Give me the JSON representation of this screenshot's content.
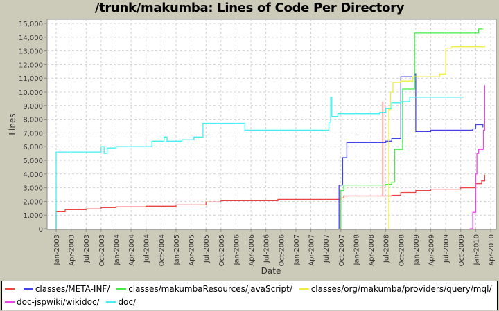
{
  "title": "/trunk/makumba: Lines of Code Per Directory",
  "chart_data": {
    "type": "line",
    "title": "/trunk/makumba: Lines of Code Per Directory",
    "xlabel": "Date",
    "ylabel": "Lines",
    "ylim": [
      0,
      15500
    ],
    "yticks": [
      "0",
      "1,000",
      "2,000",
      "3,000",
      "4,000",
      "5,000",
      "6,000",
      "7,000",
      "8,000",
      "9,000",
      "10,000",
      "11,000",
      "12,000",
      "13,000",
      "14,000",
      "15,000"
    ],
    "xticks": [
      "Jan-2003",
      "Apr-2003",
      "Jul-2003",
      "Oct-2003",
      "Jan-2004",
      "Apr-2004",
      "Jul-2004",
      "Oct-2004",
      "Jan-2005",
      "Apr-2005",
      "Jul-2005",
      "Oct-2005",
      "Jan-2006",
      "Apr-2006",
      "Jul-2006",
      "Oct-2006",
      "Jan-2007",
      "Apr-2007",
      "Jul-2007",
      "Oct-2007",
      "Jan-2008",
      "Apr-2008",
      "Jul-2008",
      "Oct-2008",
      "Jan-2009",
      "Apr-2009",
      "Jul-2009",
      "Oct-2009",
      "Jan-2010",
      "Apr-2010"
    ],
    "grid": true,
    "legend_position": "bottom",
    "series": [
      {
        "name": "",
        "color": "#ee4444",
        "points": [
          [
            2003.0,
            0
          ],
          [
            2003.0,
            1250
          ],
          [
            2003.1,
            1250
          ],
          [
            2003.15,
            1400
          ],
          [
            2003.5,
            1450
          ],
          [
            2003.75,
            1550
          ],
          [
            2004.0,
            1600
          ],
          [
            2004.5,
            1650
          ],
          [
            2005.0,
            1750
          ],
          [
            2005.5,
            1950
          ],
          [
            2005.75,
            2050
          ],
          [
            2006.5,
            2050
          ],
          [
            2006.7,
            2150
          ],
          [
            2007.5,
            2150
          ],
          [
            2007.75,
            2250
          ],
          [
            2007.8,
            2400
          ],
          [
            2008.4,
            2400
          ],
          [
            2008.45,
            9300
          ],
          [
            2008.45,
            2400
          ],
          [
            2008.6,
            2450
          ],
          [
            2008.75,
            2650
          ],
          [
            2009.0,
            2800
          ],
          [
            2009.25,
            2900
          ],
          [
            2009.75,
            3000
          ],
          [
            2010.0,
            3300
          ],
          [
            2010.1,
            3500
          ],
          [
            2010.15,
            3950
          ]
        ]
      },
      {
        "name": "classes/META-INF/",
        "color": "#4444ee",
        "points": [
          [
            2007.72,
            0
          ],
          [
            2007.72,
            3200
          ],
          [
            2007.78,
            5200
          ],
          [
            2007.85,
            6300
          ],
          [
            2008.0,
            6300
          ],
          [
            2008.5,
            6400
          ],
          [
            2008.6,
            6600
          ],
          [
            2008.75,
            11100
          ],
          [
            2008.98,
            11300
          ],
          [
            2009.0,
            7100
          ],
          [
            2009.25,
            7200
          ],
          [
            2009.75,
            7200
          ],
          [
            2009.95,
            7300
          ],
          [
            2010.0,
            7600
          ],
          [
            2010.1,
            7600
          ],
          [
            2010.12,
            7400
          ]
        ]
      },
      {
        "name": "classes/makumbaResources/javaScript/",
        "color": "#44ee44",
        "points": [
          [
            2007.75,
            0
          ],
          [
            2007.75,
            2800
          ],
          [
            2007.8,
            3200
          ],
          [
            2008.5,
            3250
          ],
          [
            2008.6,
            3400
          ],
          [
            2008.65,
            5800
          ],
          [
            2008.75,
            5800
          ],
          [
            2008.78,
            10200
          ],
          [
            2008.95,
            10200
          ],
          [
            2008.98,
            14300
          ],
          [
            2010.0,
            14300
          ],
          [
            2010.05,
            14600
          ],
          [
            2010.12,
            14600
          ]
        ]
      },
      {
        "name": "classes/org/makumba/providers/query/mql/",
        "color": "#eeee44",
        "points": [
          [
            2008.55,
            0
          ],
          [
            2008.55,
            8700
          ],
          [
            2008.58,
            10000
          ],
          [
            2008.62,
            10700
          ],
          [
            2008.75,
            10800
          ],
          [
            2008.95,
            11100
          ],
          [
            2009.4,
            11300
          ],
          [
            2009.5,
            13200
          ],
          [
            2009.6,
            13300
          ],
          [
            2010.15,
            13400
          ]
        ]
      },
      {
        "name": "doc-jspwiki/wikidoc/",
        "color": "#ee44ee",
        "points": [
          [
            2009.9,
            0
          ],
          [
            2009.95,
            1200
          ],
          [
            2010.0,
            4000
          ],
          [
            2010.02,
            5500
          ],
          [
            2010.05,
            5800
          ],
          [
            2010.12,
            5800
          ],
          [
            2010.13,
            7200
          ],
          [
            2010.15,
            10500
          ]
        ]
      },
      {
        "name": "doc/",
        "color": "#44eeee",
        "points": [
          [
            2003.0,
            0
          ],
          [
            2003.0,
            5600
          ],
          [
            2003.7,
            5600
          ],
          [
            2003.75,
            6000
          ],
          [
            2003.8,
            5500
          ],
          [
            2003.85,
            5900
          ],
          [
            2004.0,
            6000
          ],
          [
            2004.5,
            6000
          ],
          [
            2004.6,
            6400
          ],
          [
            2004.8,
            6700
          ],
          [
            2004.85,
            6400
          ],
          [
            2005.1,
            6500
          ],
          [
            2005.3,
            6700
          ],
          [
            2005.45,
            7700
          ],
          [
            2005.75,
            7700
          ],
          [
            2006.1,
            7700
          ],
          [
            2006.15,
            7200
          ],
          [
            2007.5,
            7200
          ],
          [
            2007.55,
            7800
          ],
          [
            2007.58,
            9600
          ],
          [
            2007.6,
            8200
          ],
          [
            2007.7,
            8400
          ],
          [
            2008.4,
            8500
          ],
          [
            2008.5,
            8800
          ],
          [
            2008.6,
            9200
          ],
          [
            2008.75,
            9300
          ],
          [
            2008.9,
            9600
          ],
          [
            2009.8,
            9600
          ]
        ]
      }
    ]
  },
  "legend": {
    "items": [
      {
        "label": "",
        "color": "#ee4444"
      },
      {
        "label": "classes/META-INF/",
        "color": "#4444ee"
      },
      {
        "label": "classes/makumbaResources/javaScript/",
        "color": "#44ee44"
      },
      {
        "label": "classes/org/makumba/providers/query/mql/",
        "color": "#eeee44"
      },
      {
        "label": "doc-jspwiki/wikidoc/",
        "color": "#ee44ee"
      },
      {
        "label": "doc/",
        "color": "#44eeee"
      }
    ]
  }
}
